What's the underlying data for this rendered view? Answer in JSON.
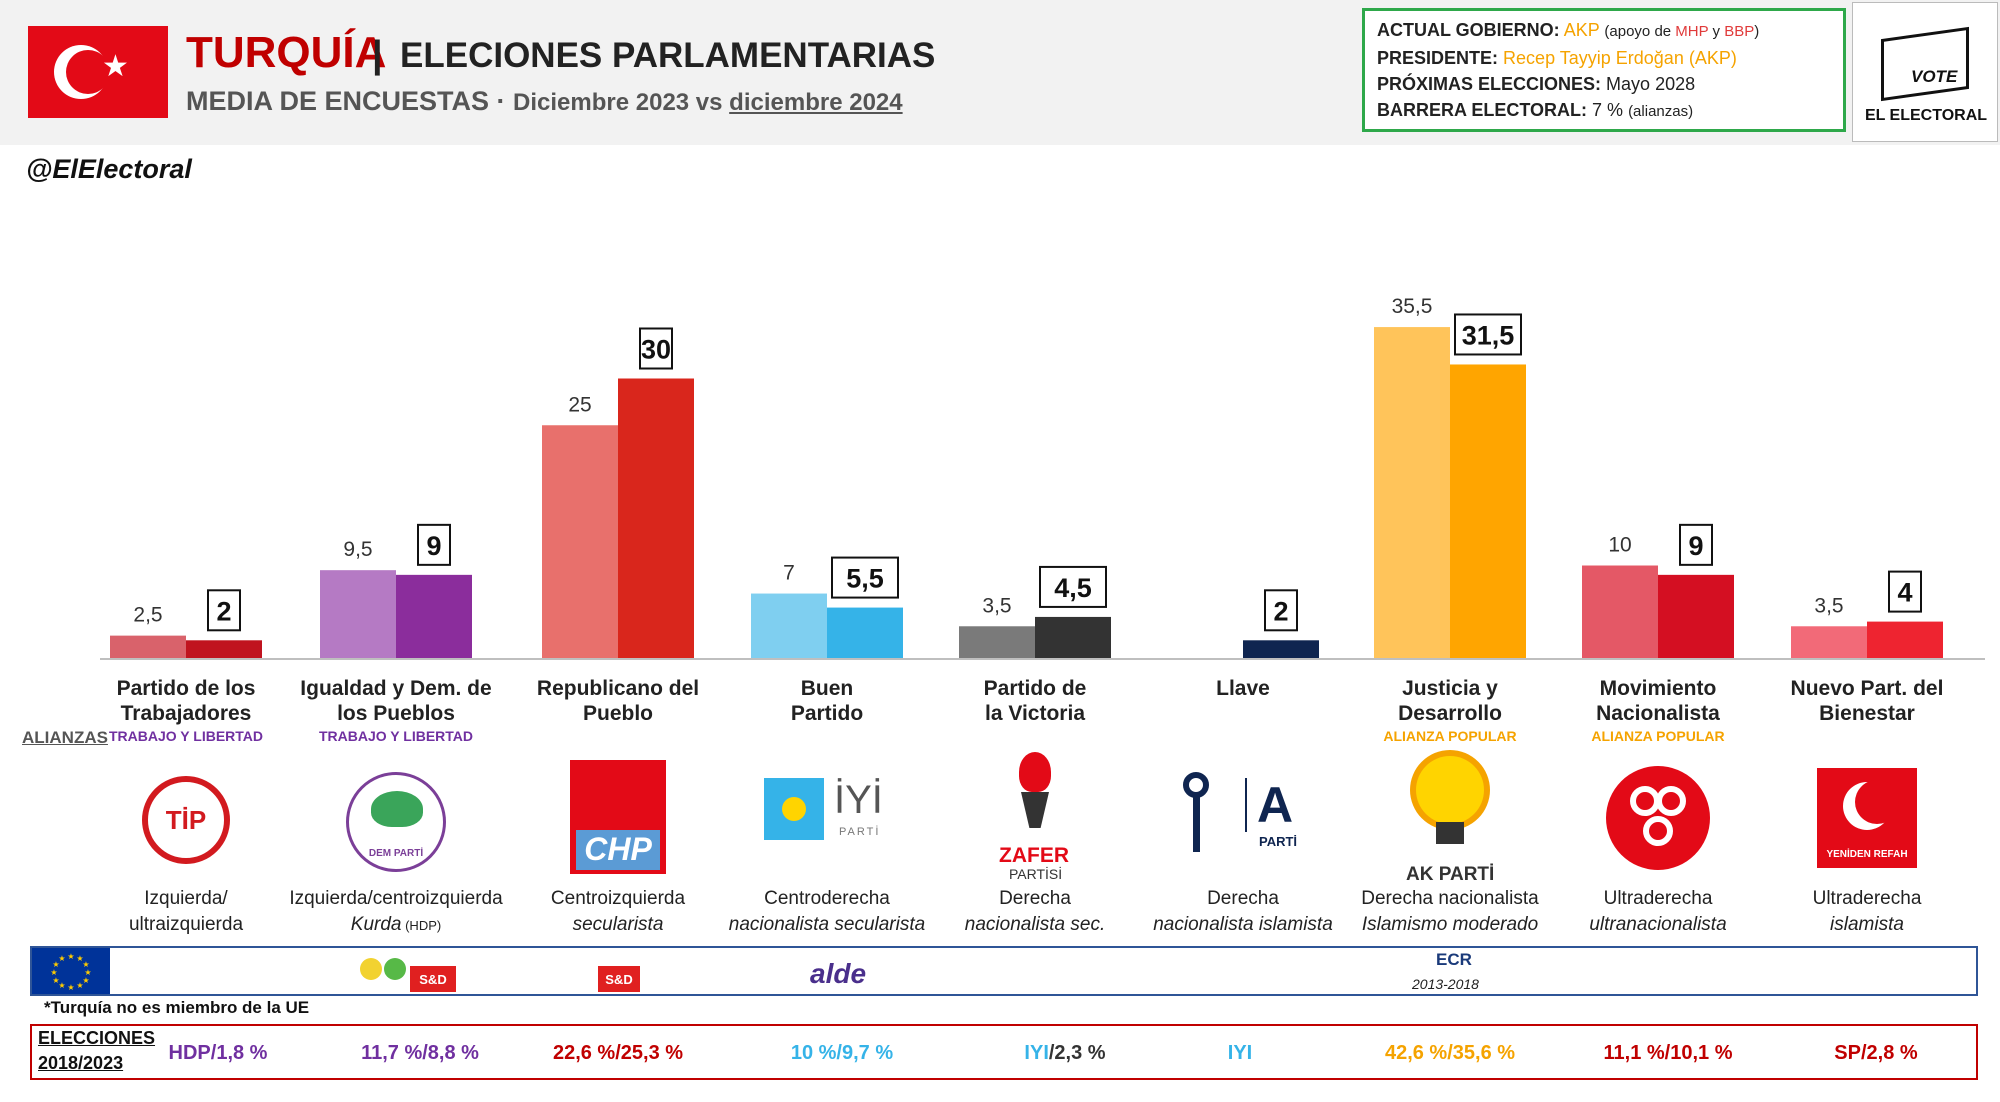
{
  "header": {
    "country": "TURQUÍA",
    "separator": "|",
    "title": "ELECIONES PARLAMENTARIAS",
    "subtitle_lead": "MEDIA DE ENCUESTAS",
    "subtitle_dot": " · ",
    "subtitle_date_a": "Diciembre 2023 vs ",
    "subtitle_date_b": "diciembre 2024",
    "handle": "@ElElectoral"
  },
  "info": {
    "gov_label": "ACTUAL GOBIERNO:",
    "gov_value": "AKP",
    "gov_support_a": "(apoyo de ",
    "gov_support_mhp": "MHP",
    "gov_support_y": " y ",
    "gov_support_bbp": "BBP",
    "gov_support_end": ")",
    "pres_label": "PRESIDENTE:",
    "pres_value": "Recep Tayyip Erdoğan (AKP)",
    "next_label": "PRÓXIMAS ELECCIONES:",
    "next_value": "Mayo 2028",
    "barrier_label": "BARRERA ELECTORAL:",
    "barrier_value": "7 %",
    "barrier_note": "(alianzas)"
  },
  "logo": {
    "vote": "VOTE",
    "brand": "EL ELECTORAL"
  },
  "alliances_label": "ALIANZAS",
  "colors": {
    "red_title": "#c00000",
    "akp_orange": "#f5a300",
    "info_border": "#2ea84a"
  },
  "chart_data": {
    "type": "bar",
    "series": [
      {
        "name": "Diciembre 2023",
        "values": [
          2.5,
          9.5,
          25,
          7,
          3.5,
          null,
          35.5,
          10,
          3.5
        ]
      },
      {
        "name": "diciembre 2024",
        "values": [
          2,
          9,
          30,
          5.5,
          4.5,
          2,
          31.5,
          9,
          4
        ]
      }
    ],
    "labels_2023": [
      "2,5",
      "9,5",
      "25",
      "7",
      "3,5",
      "",
      "35,5",
      "10",
      "3,5"
    ],
    "labels_2024": [
      "2",
      "9",
      "30",
      "5,5",
      "4,5",
      "2",
      "31,5",
      "9",
      "4"
    ],
    "categories": [
      "Partido de los Trabajadores",
      "Igualdad y Dem. de los Pueblos",
      "Republicano del Pueblo",
      "Buen Partido",
      "Partido de la Victoria",
      "Llave",
      "Justicia y Desarrollo",
      "Movimiento Nacionalista",
      "Nuevo Part. del Bienestar"
    ],
    "colors_2023": [
      "#d9626b",
      "#b57ac4",
      "#e8706c",
      "#7fcff0",
      "#7a7a7a",
      "#1a2f5a",
      "#ffc45a",
      "#e45866",
      "#f26a78"
    ],
    "colors_2024": [
      "#c0131f",
      "#8b2d9c",
      "#d9261c",
      "#35b3e8",
      "#333333",
      "#0f2550",
      "#ffa500",
      "#d40f22",
      "#ee2430"
    ],
    "ylim": [
      0,
      40
    ],
    "xlabel": "",
    "ylabel": ""
  },
  "parties": [
    {
      "name_l1": "Partido de los",
      "name_l2": "Trabajadores",
      "alliance": "TRABAJO Y LIBERTAD",
      "alliance_color": "#7030a0",
      "ideo_l1": "Izquierda/",
      "ideo_l2": "ultraizquierda",
      "logo_text": "TİP",
      "elec": "HDP/1,8 %",
      "elec_color": "#7030a0"
    },
    {
      "name_l1": "Igualdad y Dem. de",
      "name_l2": "los Pueblos",
      "alliance": "TRABAJO Y LIBERTAD",
      "alliance_color": "#7030a0",
      "ideo_l1": "Izquierda/centroizquierda",
      "ideo_l2": "Kurda",
      "ideo_l2_note": "(HDP)",
      "logo_text": "DEM PARTİ",
      "elec": "11,7 %/8,8 %",
      "elec_color": "#7030a0"
    },
    {
      "name_l1": "Republicano del",
      "name_l2": "Pueblo",
      "alliance": "",
      "alliance_color": "#000000",
      "ideo_l1": "Centroizquierda",
      "ideo_l2": "secularista",
      "logo_text": "CHP",
      "elec": "22,6 %/25,3 %",
      "elec_color": "#c00000"
    },
    {
      "name_l1": "Buen",
      "name_l2": "Partido",
      "alliance": "",
      "alliance_color": "#000000",
      "ideo_l1": "Centroderecha",
      "ideo_l2": "nacionalista secularista",
      "logo_text": "İYİ",
      "logo_sub": "PARTİ",
      "elec": "10 %/9,7 %",
      "elec_color": "#35b3e8"
    },
    {
      "name_l1": "Partido de",
      "name_l2": "la Victoria",
      "alliance": "",
      "alliance_color": "#000000",
      "ideo_l1": "Derecha",
      "ideo_l2": "nacionalista sec.",
      "logo_text": "ZAFER",
      "logo_sub": "PARTİSİ",
      "elec": "IYI/2,3 %",
      "elec_color_a": "#35b3e8",
      "elec_color": "#333333"
    },
    {
      "name_l1": "Llave",
      "name_l2": "",
      "alliance": "",
      "alliance_color": "#000000",
      "ideo_l1": "Derecha",
      "ideo_l2": "nacionalista islamista",
      "logo_text": "A",
      "logo_sub": "PARTİ",
      "elec": "IYI",
      "elec_color": "#35b3e8"
    },
    {
      "name_l1": "Justicia y",
      "name_l2": "Desarrollo",
      "alliance": "ALIANZA POPULAR",
      "alliance_color": "#f5a300",
      "ideo_l1": "Derecha nacionalista",
      "ideo_l2": "Islamismo moderado",
      "logo_text": "AK PARTİ",
      "elec": "42,6 %/35,6 %",
      "elec_color": "#f5a300"
    },
    {
      "name_l1": "Movimiento",
      "name_l2": "Nacionalista",
      "alliance": "ALIANZA POPULAR",
      "alliance_color": "#f5a300",
      "ideo_l1": "Ultraderecha",
      "ideo_l2": "ultranacionalista",
      "logo_text": "",
      "elec": "11,1 %/10,1 %",
      "elec_color": "#c00000"
    },
    {
      "name_l1": "Nuevo Part. del",
      "name_l2": "Bienestar",
      "alliance": "",
      "alliance_color": "#000000",
      "ideo_l1": "Ultraderecha",
      "ideo_l2": "islamista",
      "logo_text": "YENİDEN REFAH",
      "elec": "SP/2,8 %",
      "elec_color": "#c00000"
    }
  ],
  "eu": {
    "sd_label": "S&D",
    "alde_label": "alde",
    "ecr_label": "ECR",
    "ecr_years": "2013-2018",
    "note": "*Turquía no es miembro de la UE"
  },
  "elections": {
    "label_l1": "ELECCIONES",
    "label_l2": "2018/2023"
  }
}
